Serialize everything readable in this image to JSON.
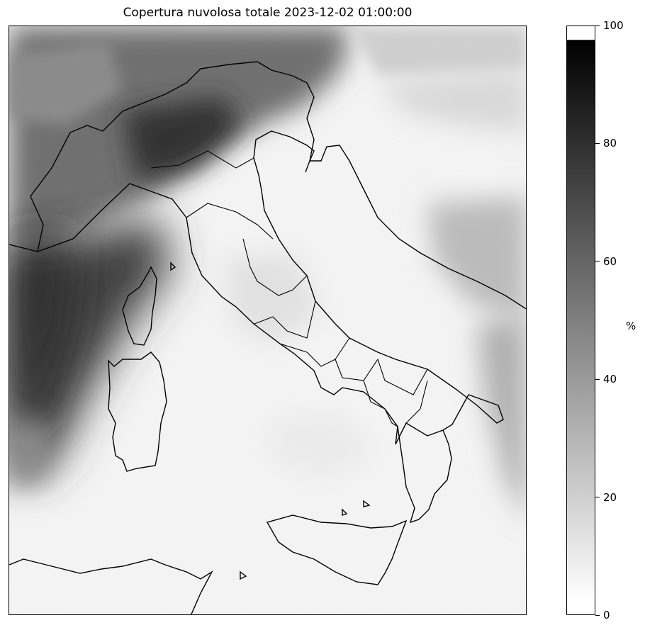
{
  "map": {
    "title": "Copertura nuvolosa totale 2023-12-02 01:00:00",
    "field": "total cloud cover",
    "region": "Italy",
    "colormap": "grayscale (white = 0, black = 100)"
  },
  "colorbar": {
    "unit": "%",
    "min": 0,
    "max": 100,
    "ticks": [
      "0",
      "20",
      "40",
      "60",
      "80",
      "100"
    ],
    "color_low": "#ffffff",
    "color_high": "#000000"
  }
}
